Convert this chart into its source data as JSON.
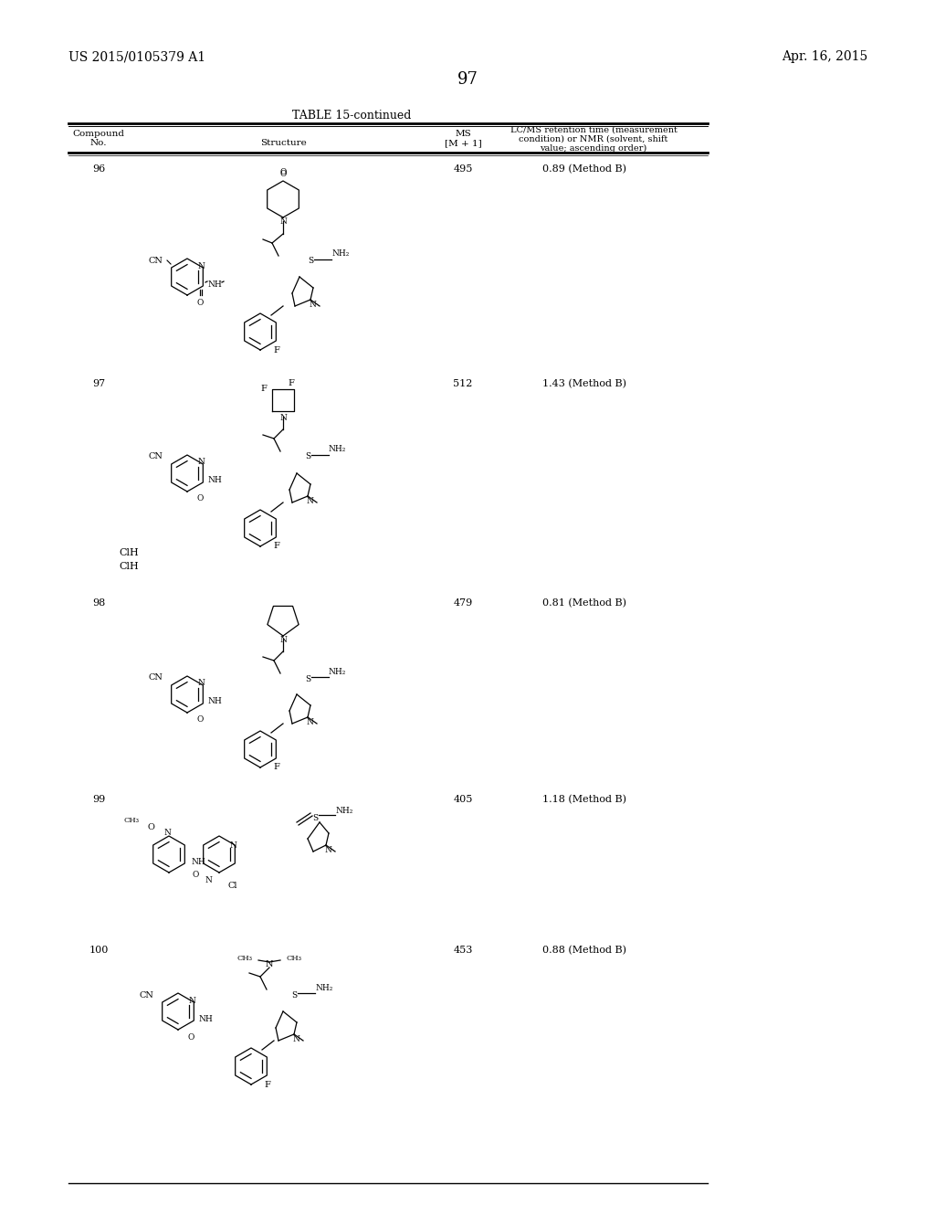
{
  "page_number": "97",
  "patent_number": "US 2015/0105379 A1",
  "patent_date": "Apr. 16, 2015",
  "table_title": "TABLE 15-continued",
  "col_headers": [
    "Compound\nNo.",
    "Structure",
    "MS\n[M+1]",
    "LC/MS retention time (measurement\ncondition) or NMR (solvent, shift\nvalue; ascending order)"
  ],
  "compounds": [
    {
      "no": "96",
      "ms": "495",
      "lcms": "0.89 (Method B)"
    },
    {
      "no": "97",
      "ms": "512",
      "lcms": "1.43 (Method B)",
      "extra": "ClH\nClH"
    },
    {
      "no": "98",
      "ms": "479",
      "lcms": "0.81 (Method B)"
    },
    {
      "no": "99",
      "ms": "405",
      "lcms": "1.18 (Method B)"
    },
    {
      "no": "100",
      "ms": "453",
      "lcms": "0.88 (Method B)"
    }
  ],
  "bg_color": "#ffffff",
  "text_color": "#000000",
  "line_color": "#000000",
  "font_size_header": 7.5,
  "font_size_body": 7.5,
  "font_size_page": 10,
  "font_size_table_title": 8.5
}
